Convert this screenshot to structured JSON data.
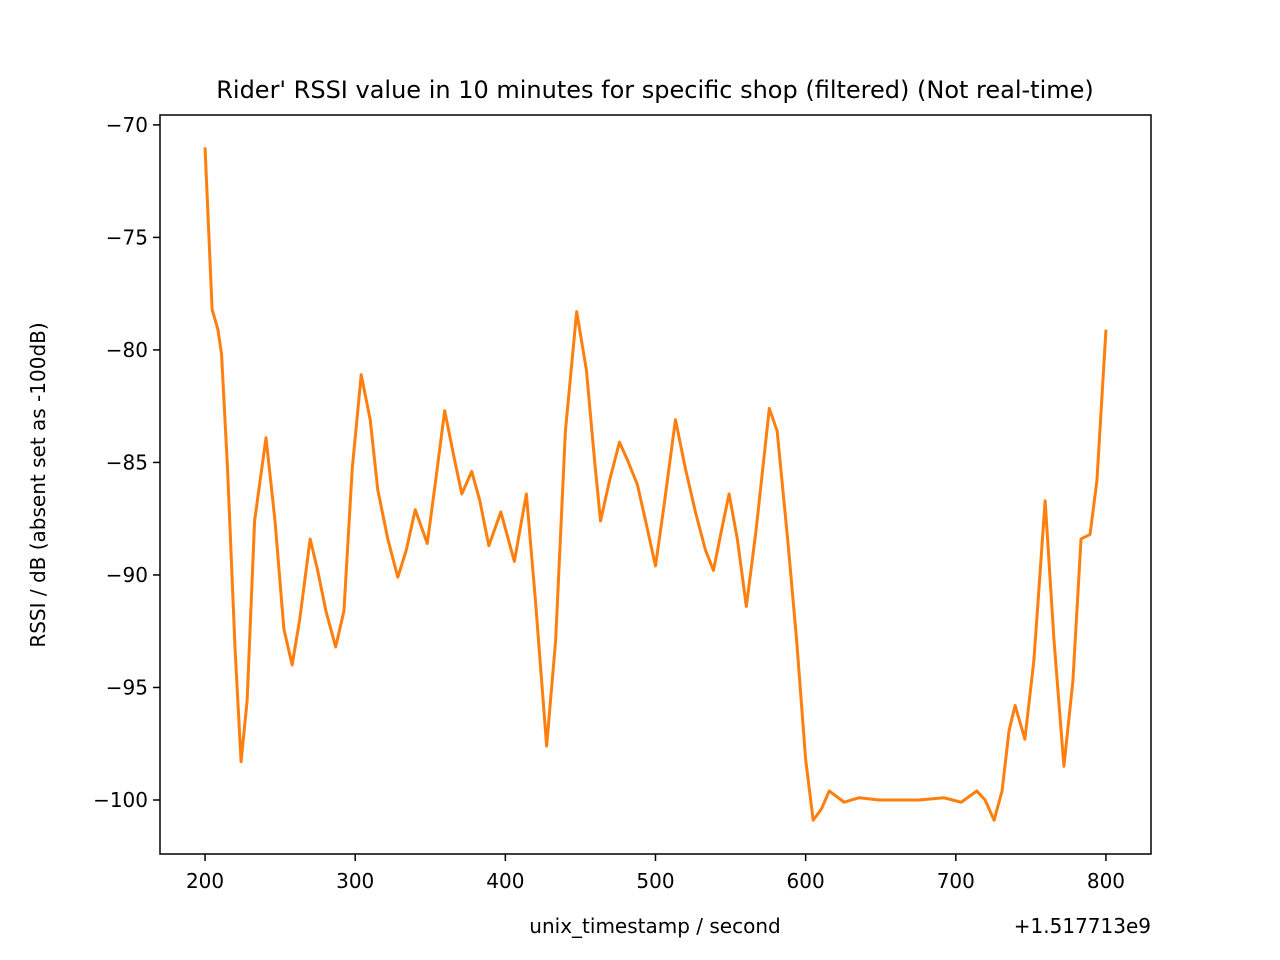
{
  "chart_data": {
    "type": "line",
    "title": "Rider' RSSI value in 10 minutes for specific shop (filtered) (Not real-time)",
    "x_label": "unix_timestamp / second",
    "y_label": "RSSI / dB (absent set as -100dB)",
    "x_offset_label": "+1.517713e9",
    "xlim": [
      170,
      830
    ],
    "ylim": [
      -102.4,
      -69.56
    ],
    "xticks": [
      200,
      300,
      400,
      500,
      600,
      700,
      800
    ],
    "yticks": [
      {
        "value": -100,
        "label": "−100"
      },
      {
        "value": -95,
        "label": "−95"
      },
      {
        "value": -90,
        "label": "−90"
      },
      {
        "value": -85,
        "label": "−85"
      },
      {
        "value": -80,
        "label": "−80"
      },
      {
        "value": -75,
        "label": "−75"
      },
      {
        "value": -70,
        "label": "−70"
      }
    ],
    "grid": false,
    "x": [
      200,
      204.7,
      208.6,
      211,
      215,
      220,
      224,
      228,
      233,
      240.6,
      246.6,
      252.5,
      258,
      263,
      270,
      275,
      280.5,
      287,
      292.5,
      298,
      304,
      310,
      315,
      321.7,
      328.4,
      334,
      340,
      348,
      353.6,
      359.6,
      365.6,
      371,
      377.6,
      383,
      389,
      397,
      406,
      414,
      420,
      427.5,
      433.5,
      440,
      447.5,
      454,
      459.4,
      463.4,
      469.4,
      476,
      481.4,
      488,
      493.4,
      500,
      505.3,
      513.3,
      520,
      526.6,
      533.3,
      538.6,
      544,
      549,
      554.5,
      560.5,
      567,
      575.8,
      581,
      588,
      594,
      600,
      605,
      610.5,
      615.7,
      625.7,
      635.7,
      649,
      675.6,
      692,
      703.6,
      714,
      719.5,
      725.5,
      730.8,
      735.5,
      739.5,
      746,
      752,
      759.5,
      765.4,
      772,
      778,
      783.4,
      789.4,
      794,
      800
    ],
    "series": [
      {
        "color": "#ff7f0e",
        "values": [
          -71,
          -78.2,
          -79.1,
          -80.2,
          -85.3,
          -93.3,
          -98.3,
          -95.6,
          -87.6,
          -83.9,
          -87.6,
          -92.4,
          -94,
          -92,
          -88.4,
          -89.8,
          -91.6,
          -93.2,
          -91.6,
          -85.3,
          -81.1,
          -83.1,
          -86.2,
          -88.4,
          -90.1,
          -88.9,
          -87.1,
          -88.6,
          -85.8,
          -82.7,
          -84.7,
          -86.4,
          -85.4,
          -86.7,
          -88.7,
          -87.2,
          -89.4,
          -86.4,
          -91.1,
          -97.6,
          -92.9,
          -83.6,
          -78.3,
          -80.9,
          -84.9,
          -87.6,
          -85.8,
          -84.1,
          -84.9,
          -86,
          -87.6,
          -89.6,
          -87.1,
          -83.1,
          -85.3,
          -87.2,
          -88.9,
          -89.8,
          -88,
          -86.4,
          -88.4,
          -91.4,
          -88,
          -82.6,
          -83.6,
          -88.4,
          -92.9,
          -98.2,
          -100.9,
          -100.4,
          -99.6,
          -100.1,
          -99.9,
          -100,
          -100,
          -99.9,
          -100.1,
          -99.6,
          -100,
          -100.9,
          -99.6,
          -96.9,
          -95.8,
          -97.3,
          -93.8,
          -86.7,
          -92.9,
          -98.5,
          -94.7,
          -88.4,
          -88.2,
          -85.8,
          -79.1
        ]
      }
    ]
  }
}
